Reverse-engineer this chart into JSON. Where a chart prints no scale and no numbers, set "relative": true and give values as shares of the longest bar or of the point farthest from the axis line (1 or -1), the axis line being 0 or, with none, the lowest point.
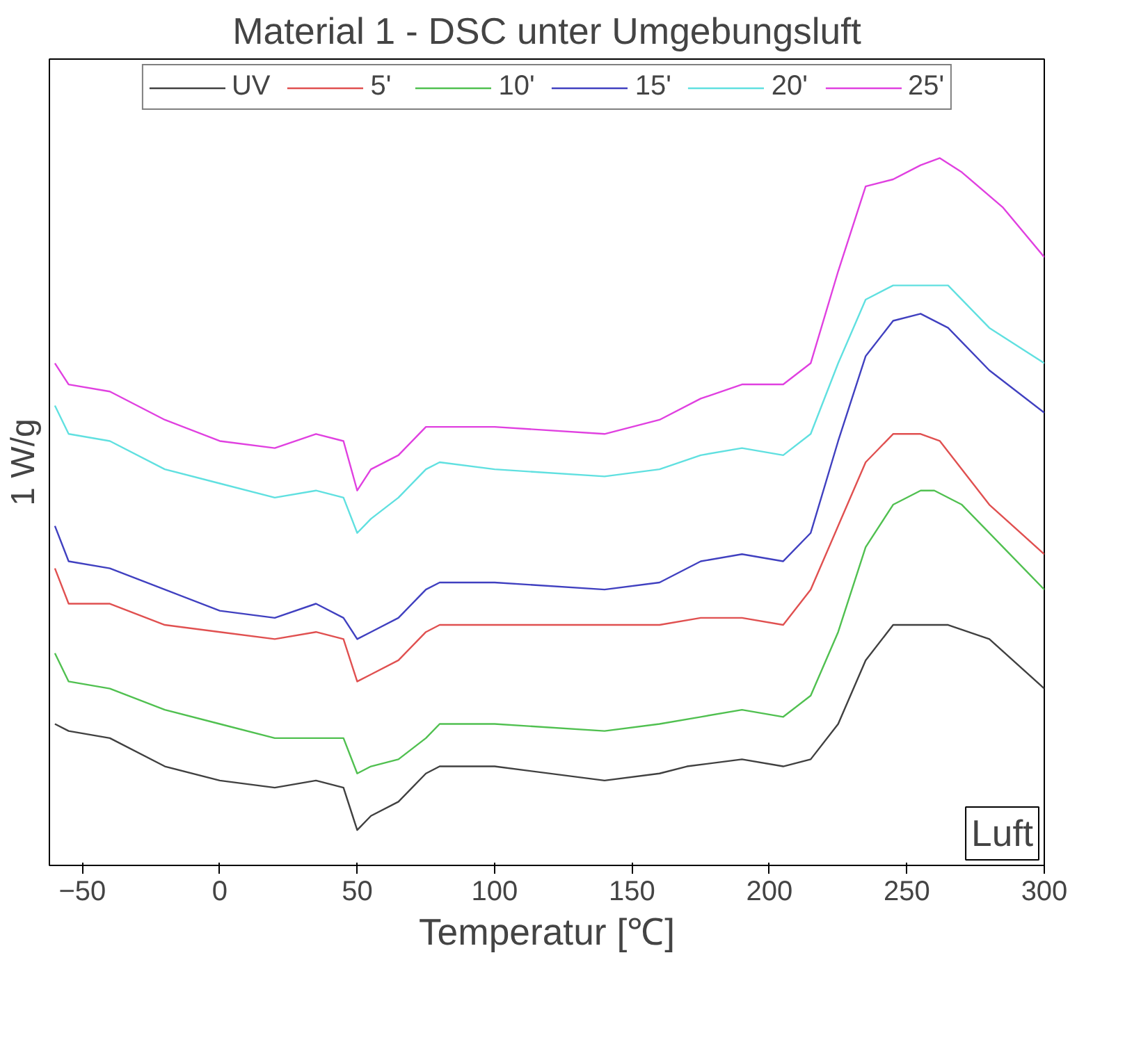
{
  "chart_data": {
    "type": "line",
    "title": "Material 1 - DSC unter Umgebungsluft",
    "xlabel": "Temperatur [℃]",
    "ylabel": "1 W/g",
    "relative": true,
    "xlim": [
      -62,
      300
    ],
    "xticks": [
      -50,
      0,
      50,
      100,
      150,
      200,
      250,
      300
    ],
    "grid": false,
    "legend": "top",
    "marker": "none",
    "line_style": "solid",
    "annotations": [
      "Luft"
    ],
    "series": [
      {
        "name": "UV",
        "color": "#404040",
        "x": [
          -60,
          -55,
          -40,
          -20,
          0,
          20,
          35,
          45,
          50,
          55,
          65,
          75,
          80,
          100,
          140,
          160,
          170,
          190,
          205,
          215,
          225,
          235,
          245,
          255,
          265,
          280,
          300
        ],
        "values": [
          0.2,
          0.19,
          0.18,
          0.14,
          0.12,
          0.11,
          0.12,
          0.11,
          0.05,
          0.07,
          0.09,
          0.13,
          0.14,
          0.14,
          0.12,
          0.13,
          0.14,
          0.15,
          0.14,
          0.15,
          0.2,
          0.29,
          0.34,
          0.34,
          0.34,
          0.32,
          0.25
        ]
      },
      {
        "name": "5'",
        "color": "#e05050",
        "x": [
          -60,
          -55,
          -40,
          -20,
          0,
          20,
          35,
          45,
          50,
          55,
          65,
          75,
          80,
          100,
          140,
          160,
          175,
          190,
          205,
          215,
          225,
          235,
          245,
          255,
          262,
          280,
          300
        ],
        "values": [
          0.42,
          0.37,
          0.37,
          0.34,
          0.33,
          0.32,
          0.33,
          0.32,
          0.26,
          0.27,
          0.29,
          0.33,
          0.34,
          0.34,
          0.34,
          0.34,
          0.35,
          0.35,
          0.34,
          0.39,
          0.48,
          0.57,
          0.61,
          0.61,
          0.6,
          0.51,
          0.44
        ]
      },
      {
        "name": "10'",
        "color": "#50c050",
        "x": [
          -60,
          -55,
          -40,
          -20,
          0,
          20,
          35,
          45,
          50,
          55,
          65,
          75,
          80,
          100,
          140,
          160,
          175,
          190,
          205,
          215,
          225,
          235,
          245,
          255,
          260,
          270,
          285,
          300
        ],
        "values": [
          0.3,
          0.26,
          0.25,
          0.22,
          0.2,
          0.18,
          0.18,
          0.18,
          0.13,
          0.14,
          0.15,
          0.18,
          0.2,
          0.2,
          0.19,
          0.2,
          0.21,
          0.22,
          0.21,
          0.24,
          0.33,
          0.45,
          0.51,
          0.53,
          0.53,
          0.51,
          0.45,
          0.39
        ]
      },
      {
        "name": "15'",
        "color": "#4040c0",
        "x": [
          -60,
          -55,
          -40,
          -20,
          0,
          20,
          35,
          45,
          50,
          55,
          65,
          75,
          80,
          100,
          140,
          160,
          175,
          190,
          205,
          215,
          225,
          235,
          245,
          255,
          265,
          280,
          300
        ],
        "values": [
          0.48,
          0.43,
          0.42,
          0.39,
          0.36,
          0.35,
          0.37,
          0.35,
          0.32,
          0.33,
          0.35,
          0.39,
          0.4,
          0.4,
          0.39,
          0.4,
          0.43,
          0.44,
          0.43,
          0.47,
          0.6,
          0.72,
          0.77,
          0.78,
          0.76,
          0.7,
          0.64
        ]
      },
      {
        "name": "20'",
        "color": "#60e0e0",
        "x": [
          -60,
          -55,
          -40,
          -20,
          0,
          20,
          35,
          45,
          50,
          55,
          65,
          75,
          80,
          100,
          140,
          160,
          175,
          190,
          205,
          215,
          225,
          235,
          245,
          255,
          265,
          280,
          300
        ],
        "values": [
          0.65,
          0.61,
          0.6,
          0.56,
          0.54,
          0.52,
          0.53,
          0.52,
          0.47,
          0.49,
          0.52,
          0.56,
          0.57,
          0.56,
          0.55,
          0.56,
          0.58,
          0.59,
          0.58,
          0.61,
          0.71,
          0.8,
          0.82,
          0.82,
          0.82,
          0.76,
          0.71
        ]
      },
      {
        "name": "25'",
        "color": "#e040e0",
        "x": [
          -60,
          -55,
          -40,
          -20,
          0,
          20,
          35,
          45,
          50,
          55,
          65,
          75,
          80,
          100,
          140,
          160,
          175,
          190,
          205,
          215,
          225,
          235,
          245,
          255,
          262,
          270,
          285,
          300
        ],
        "values": [
          0.71,
          0.68,
          0.67,
          0.63,
          0.6,
          0.59,
          0.61,
          0.6,
          0.53,
          0.56,
          0.58,
          0.62,
          0.62,
          0.62,
          0.61,
          0.63,
          0.66,
          0.68,
          0.68,
          0.71,
          0.84,
          0.96,
          0.97,
          0.99,
          1,
          0.98,
          0.93,
          0.86
        ]
      }
    ]
  }
}
